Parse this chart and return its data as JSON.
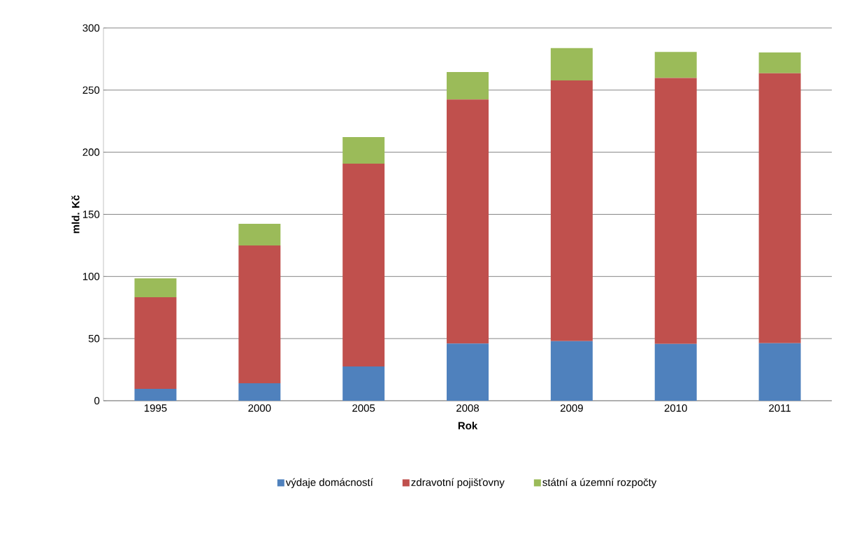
{
  "chart_data": {
    "type": "bar",
    "stacked": true,
    "xlabel": "Rok",
    "ylabel": "mld. Kč",
    "categories": [
      "1995",
      "2000",
      "2005",
      "2008",
      "2009",
      "2010",
      "2011"
    ],
    "series": [
      {
        "name": "výdaje domácností",
        "color": "#4f81bd",
        "values": [
          9.6,
          14,
          27.6,
          46,
          48,
          45.7,
          46.3
        ]
      },
      {
        "name": "zdravotní pojišťovny",
        "color": "#c0504d",
        "values": [
          73.7,
          111,
          163.2,
          196.5,
          209.8,
          214.1,
          217.3
        ]
      },
      {
        "name": "státní a územní rozpočty",
        "color": "#9bbb59",
        "values": [
          15.2,
          17.4,
          21.4,
          22,
          26,
          20.9,
          16.7
        ]
      }
    ],
    "ylim": [
      0,
      300
    ],
    "yticks": [
      0,
      50,
      100,
      150,
      200,
      250,
      300
    ],
    "grid": "y",
    "legend": "bottom"
  }
}
